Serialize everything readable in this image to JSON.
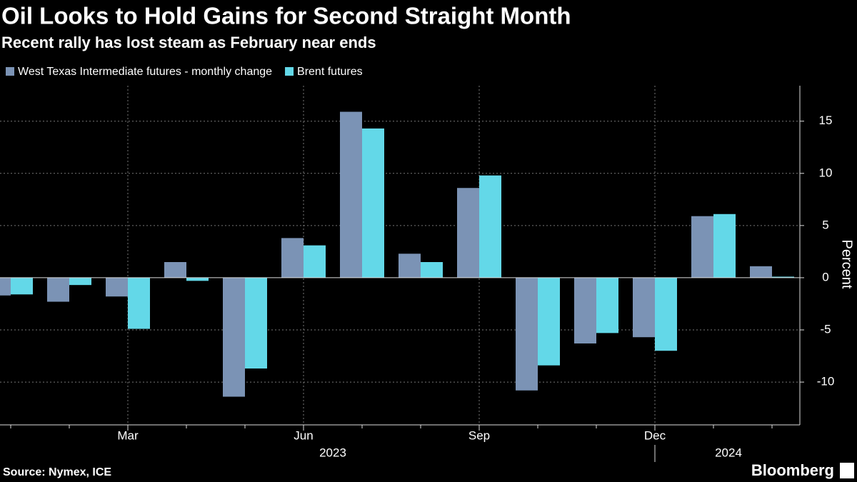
{
  "chart_data": {
    "type": "bar",
    "title": "Oil Looks to Hold Gains for Second Straight Month",
    "subtitle": "Recent rally has lost steam as February near ends",
    "y_label": "Percent",
    "source": "Source: Nymex, ICE",
    "brand": "Bloomberg",
    "categories": [
      null,
      null,
      "Mar",
      null,
      null,
      "Jun",
      null,
      null,
      "Sep",
      null,
      null,
      "Dec",
      null,
      null
    ],
    "years": [
      "2023",
      "2024"
    ],
    "series": [
      {
        "name": "West Texas Intermediate futures - monthly change",
        "color": "#7b93b5",
        "values": [
          -1.7,
          -2.3,
          -1.8,
          1.5,
          -11.4,
          3.8,
          15.9,
          2.3,
          8.6,
          -10.8,
          -6.3,
          -5.7,
          5.9,
          1.1
        ]
      },
      {
        "name": "Brent futures",
        "color": "#63d8e8",
        "values": [
          -1.6,
          -0.7,
          -4.9,
          -0.3,
          -8.7,
          3.1,
          14.3,
          1.5,
          9.8,
          -8.4,
          -5.3,
          -7.0,
          6.1,
          0.1
        ]
      }
    ],
    "ylim": [
      -14.1,
      18.4
    ],
    "yticks": [
      -10,
      -5,
      0,
      5,
      10,
      15
    ],
    "grid": true
  }
}
